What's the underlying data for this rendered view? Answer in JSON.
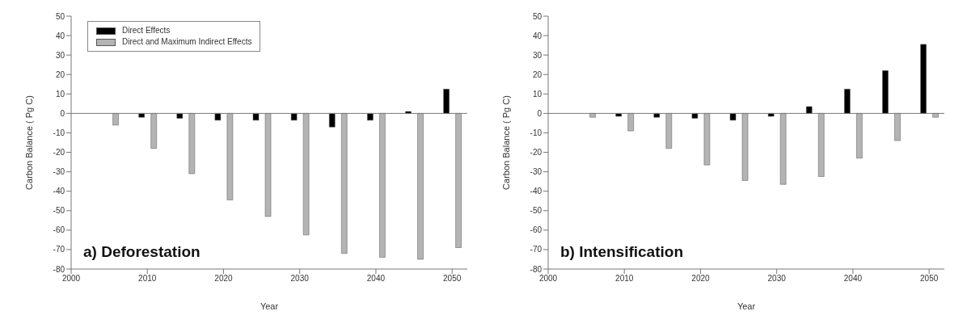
{
  "chart_data": [
    {
      "type": "bar",
      "xlabel": "Year",
      "ylabel": "Carbon Balance ( Pg C)",
      "annotations": [
        "a) Deforestation"
      ],
      "x": [
        2005,
        2010,
        2015,
        2020,
        2025,
        2030,
        2035,
        2040,
        2045,
        2050
      ],
      "series": [
        {
          "name": "Direct Effects",
          "color": "#000000",
          "values": [
            null,
            -2,
            -2.5,
            -3.5,
            -3.5,
            -3.5,
            -7,
            -3.5,
            1,
            12.5
          ]
        },
        {
          "name": "Direct and Maximum Indirect Effects",
          "color": "#b4b4b4",
          "values": [
            -6,
            -18,
            -31,
            -44.5,
            -53,
            -62.5,
            -72,
            -74,
            -75,
            -69
          ]
        }
      ],
      "xlim": [
        2000,
        2052
      ],
      "xticks": [
        2000,
        2010,
        2020,
        2030,
        2040,
        2050
      ],
      "ylim": [
        -80,
        50
      ],
      "yticks": [
        -80,
        -70,
        -60,
        -50,
        -40,
        -30,
        -20,
        -10,
        0,
        10,
        20,
        30,
        40,
        50
      ],
      "legend": "top left"
    },
    {
      "type": "bar",
      "xlabel": "Year",
      "ylabel": "Carbon Balance ( Pg C)",
      "annotations": [
        "b) Intensification"
      ],
      "x": [
        2005,
        2010,
        2015,
        2020,
        2025,
        2030,
        2035,
        2040,
        2045,
        2050
      ],
      "series": [
        {
          "color": "#000000",
          "values": [
            null,
            -1.5,
            -2,
            -2.5,
            -3.5,
            -1.5,
            3.5,
            12.5,
            22,
            35.5
          ]
        },
        {
          "color": "#b4b4b4",
          "values": [
            -2,
            -9,
            -18,
            -26.5,
            -34.5,
            -36.5,
            -32.5,
            -23,
            -14,
            -2
          ]
        }
      ],
      "xlim": [
        2000,
        2052
      ],
      "xticks": [
        2000,
        2010,
        2020,
        2030,
        2040,
        2050
      ],
      "ylim": [
        -80,
        50
      ],
      "yticks": [
        -80,
        -70,
        -60,
        -50,
        -40,
        -30,
        -20,
        -10,
        0,
        10,
        20,
        30,
        40,
        50
      ]
    }
  ]
}
